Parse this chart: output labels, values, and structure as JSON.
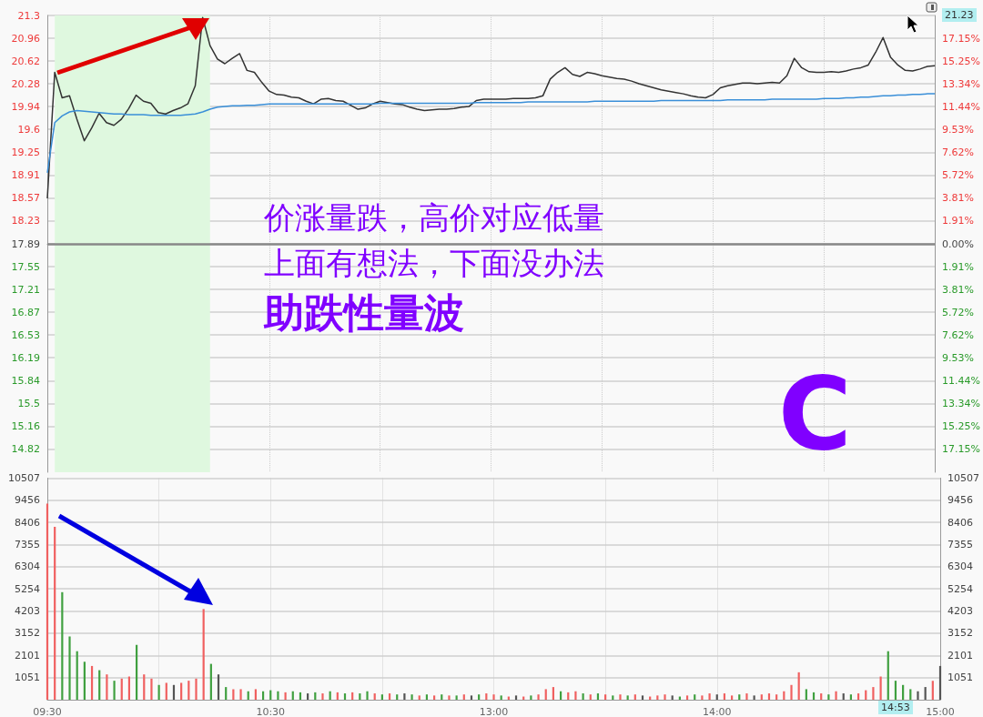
{
  "chart_data": [
    {
      "type": "line",
      "categories": [
        null,
        null,
        null,
        null,
        null,
        null,
        null,
        null,
        null,
        null,
        null,
        null,
        null,
        null,
        null,
        null,
        null,
        null,
        null,
        null,
        null,
        null,
        null,
        null,
        null,
        null,
        null,
        null,
        null,
        null,
        null,
        null,
        null,
        null,
        null,
        null,
        null,
        null,
        null,
        null,
        null,
        null,
        null,
        null,
        null,
        null,
        null,
        null,
        null,
        null,
        null,
        null,
        null,
        null,
        null,
        null,
        null,
        null,
        null,
        null,
        null,
        null,
        null,
        null,
        null,
        null,
        null,
        null,
        null,
        null,
        null,
        null,
        null,
        null,
        null,
        null,
        null,
        null,
        null,
        null,
        null,
        null,
        null,
        null,
        null,
        null,
        null,
        null,
        null,
        null,
        null,
        null,
        null,
        null,
        null,
        null,
        null,
        null,
        null,
        null,
        null,
        null,
        null,
        null,
        null,
        null,
        null,
        null,
        null,
        null,
        null,
        null,
        null,
        null,
        null,
        null,
        null,
        null,
        null,
        null,
        null
      ],
      "ylim": [
        14.48,
        21.3
      ],
      "yticks": [
        14.82,
        15.16,
        15.5,
        15.84,
        16.19,
        16.53,
        16.87,
        17.21,
        17.55,
        17.89,
        18.23,
        18.57,
        18.91,
        19.25,
        19.6,
        19.94,
        20.28,
        20.62,
        20.96,
        21.3
      ],
      "y3lim": [
        19.06,
        -19.06
      ],
      "y3ticks": [
        {
          "value": 17.15,
          "label": "17.15%"
        },
        {
          "value": 15.25,
          "label": "15.25%"
        },
        {
          "value": 13.34,
          "label": "13.34%"
        },
        {
          "value": 11.44,
          "label": "11.44%"
        },
        {
          "value": 9.53,
          "label": "9.53%"
        },
        {
          "value": 7.62,
          "label": "7.62%"
        },
        {
          "value": 5.72,
          "label": "5.72%"
        },
        {
          "value": 3.81,
          "label": "3.81%"
        },
        {
          "value": 1.91,
          "label": "1.91%"
        }
      ],
      "y2lim": [
        -19.06,
        19.06
      ],
      "y2ticks": [
        {
          "value": 0,
          "label": "0.00%"
        },
        {
          "value": 1.91,
          "label": "1.91%"
        },
        {
          "value": 3.81,
          "label": "3.81%"
        },
        {
          "value": 5.72,
          "label": "5.72%"
        },
        {
          "value": 7.62,
          "label": "7.62%"
        },
        {
          "value": 9.53,
          "label": "9.53%"
        },
        {
          "value": 11.44,
          "label": "11.44%"
        },
        {
          "value": 13.34,
          "label": "13.34%"
        },
        {
          "value": 15.25,
          "label": "15.25%"
        },
        {
          "value": 17.15,
          "label": "17.15%"
        }
      ],
      "tick_labels": "y",
      "grid": true,
      "line_style": "solid",
      "series": [
        {
          "color": "#333333",
          "values": [
            18.57,
            20.45,
            20.07,
            20.1,
            19.75,
            19.43,
            19.62,
            19.84,
            19.7,
            19.66,
            19.75,
            19.91,
            20.11,
            20.02,
            19.99,
            19.85,
            19.83,
            19.88,
            19.92,
            19.98,
            20.25,
            21.27,
            20.85,
            20.65,
            20.58,
            20.66,
            20.73,
            20.48,
            20.45,
            20.3,
            20.17,
            20.12,
            20.11,
            20.08,
            20.07,
            20.02,
            19.98,
            20.05,
            20.06,
            20.03,
            20.02,
            19.96,
            19.9,
            19.92,
            19.98,
            20.02,
            20.0,
            19.98,
            19.97,
            19.93,
            19.9,
            19.88,
            19.89,
            19.9,
            19.9,
            19.91,
            19.93,
            19.94,
            20.03,
            20.05,
            20.05,
            20.05,
            20.05,
            20.06,
            20.06,
            20.06,
            20.07,
            20.1,
            20.35,
            20.45,
            20.52,
            20.42,
            20.39,
            20.45,
            20.43,
            20.4,
            20.38,
            20.36,
            20.35,
            20.32,
            20.28,
            20.25,
            20.22,
            20.19,
            20.17,
            20.15,
            20.13,
            20.1,
            20.08,
            20.07,
            20.12,
            20.22,
            20.25,
            20.27,
            20.29,
            20.29,
            20.28,
            20.29,
            20.3,
            20.29,
            20.4,
            20.66,
            20.52,
            20.46,
            20.45,
            20.45,
            20.46,
            20.45,
            20.47,
            20.5,
            20.52,
            20.56,
            20.75,
            20.97,
            20.68,
            20.56,
            20.48,
            20.47,
            20.5,
            20.54,
            20.55
          ]
        },
        {
          "color": "#3a8fd8",
          "values": [
            18.95,
            19.7,
            19.8,
            19.86,
            19.88,
            19.87,
            19.86,
            19.85,
            19.84,
            19.83,
            19.83,
            19.82,
            19.82,
            19.82,
            19.81,
            19.81,
            19.81,
            19.81,
            19.81,
            19.82,
            19.83,
            19.86,
            19.9,
            19.93,
            19.94,
            19.95,
            19.95,
            19.96,
            19.96,
            19.97,
            19.98,
            19.98,
            19.98,
            19.98,
            19.98,
            19.98,
            19.98,
            19.98,
            19.98,
            19.98,
            19.98,
            19.98,
            19.98,
            19.98,
            19.98,
            19.99,
            19.99,
            19.99,
            19.99,
            19.99,
            19.99,
            19.99,
            19.99,
            19.99,
            19.99,
            19.99,
            19.99,
            19.99,
            20.0,
            20.0,
            20.0,
            20.0,
            20.0,
            20.0,
            20.0,
            20.01,
            20.01,
            20.01,
            20.01,
            20.01,
            20.01,
            20.01,
            20.01,
            20.01,
            20.02,
            20.02,
            20.02,
            20.02,
            20.02,
            20.02,
            20.02,
            20.02,
            20.02,
            20.03,
            20.03,
            20.03,
            20.03,
            20.03,
            20.03,
            20.03,
            20.03,
            20.03,
            20.04,
            20.04,
            20.04,
            20.04,
            20.04,
            20.04,
            20.05,
            20.05,
            20.05,
            20.05,
            20.05,
            20.05,
            20.05,
            20.06,
            20.06,
            20.06,
            20.07,
            20.07,
            20.08,
            20.08,
            20.09,
            20.1,
            20.1,
            20.11,
            20.11,
            20.12,
            20.12,
            20.13,
            20.13
          ]
        }
      ],
      "ref_lines": [
        {
          "axis": "y",
          "value": 17.89,
          "color": "#888888"
        }
      ],
      "annotations": [
        "价涨量跌，高价对应低量",
        "上面有想法，下面没办法",
        "助跌性量波",
        "C",
        "21.23"
      ]
    },
    {
      "type": "bar",
      "categories": [
        "09:30",
        null,
        null,
        null,
        null,
        null,
        null,
        null,
        null,
        null,
        null,
        null,
        null,
        null,
        null,
        null,
        null,
        null,
        null,
        null,
        null,
        null,
        null,
        null,
        null,
        null,
        null,
        null,
        null,
        null,
        "10:30",
        null,
        null,
        null,
        null,
        null,
        null,
        null,
        null,
        null,
        null,
        null,
        null,
        null,
        null,
        null,
        null,
        null,
        null,
        null,
        null,
        null,
        null,
        null,
        null,
        null,
        null,
        null,
        null,
        null,
        "13:00",
        null,
        null,
        null,
        null,
        null,
        null,
        null,
        null,
        null,
        null,
        null,
        null,
        null,
        null,
        null,
        null,
        null,
        null,
        null,
        null,
        null,
        null,
        null,
        null,
        null,
        null,
        null,
        null,
        null,
        "14:00",
        null,
        null,
        null,
        null,
        null,
        null,
        null,
        null,
        null,
        null,
        null,
        null,
        null,
        null,
        null,
        null,
        null,
        null,
        null,
        null,
        null,
        null,
        null,
        null,
        null,
        null,
        null,
        null,
        null,
        "15:00"
      ],
      "ylim": [
        0,
        10507
      ],
      "yticks": [
        1051,
        2101,
        3152,
        4203,
        5254,
        6304,
        7355,
        8406,
        9456,
        10507
      ],
      "y2lim": [
        0,
        10507
      ],
      "y2ticks": [
        1051,
        2101,
        3152,
        4203,
        5254,
        6304,
        7355,
        8406,
        9456,
        10507
      ],
      "grid": true,
      "values": [
        9300,
        8200,
        5100,
        3000,
        2300,
        1800,
        1600,
        1400,
        1200,
        900,
        1000,
        1100,
        2600,
        1200,
        1000,
        700,
        800,
        700,
        800,
        900,
        1000,
        4300,
        1700,
        1200,
        600,
        500,
        500,
        400,
        500,
        400,
        450,
        400,
        350,
        400,
        350,
        300,
        350,
        300,
        400,
        350,
        300,
        350,
        300,
        400,
        300,
        250,
        300,
        250,
        300,
        250,
        200,
        250,
        200,
        250,
        200,
        200,
        250,
        200,
        250,
        300,
        250,
        200,
        150,
        200,
        150,
        200,
        250,
        500,
        600,
        400,
        350,
        400,
        300,
        250,
        300,
        250,
        200,
        250,
        200,
        250,
        200,
        150,
        200,
        250,
        200,
        150,
        200,
        250,
        200,
        300,
        250,
        300,
        200,
        250,
        300,
        200,
        250,
        300,
        250,
        400,
        700,
        1300,
        500,
        350,
        300,
        250,
        400,
        300,
        250,
        300,
        450,
        600,
        1100,
        2300,
        900,
        700,
        500,
        400,
        600,
        900,
        1600
      ],
      "colors": [
        "#f06060",
        "#f06060",
        "#40a040",
        "#40a040",
        "#40a040",
        "#40a040",
        "#f06060",
        "#40a040",
        "#f06060",
        "#40a040",
        "#f06060",
        "#f06060",
        "#40a040",
        "#f06060",
        "#f06060",
        "#40a040",
        "#f06060",
        "#555555",
        "#f06060",
        "#f06060",
        "#f06060",
        "#f06060",
        "#40a040",
        "#555555",
        "#40a040",
        "#f06060",
        "#f06060",
        "#40a040",
        "#f06060",
        "#40a040",
        "#40a040",
        "#40a040",
        "#f06060",
        "#40a040",
        "#40a040",
        "#555555",
        "#40a040",
        "#f06060",
        "#40a040",
        "#f06060",
        "#40a040",
        "#f06060",
        "#40a040",
        "#40a040",
        "#f06060",
        "#40a040",
        "#f06060",
        "#40a040",
        "#555555",
        "#40a040",
        "#f06060",
        "#40a040",
        "#f06060",
        "#40a040",
        "#f06060",
        "#40a040",
        "#f06060",
        "#555555",
        "#40a040",
        "#f06060",
        "#f06060",
        "#40a040",
        "#f06060",
        "#555555",
        "#f06060",
        "#40a040",
        "#f06060",
        "#f06060",
        "#f06060",
        "#40a040",
        "#f06060",
        "#f06060",
        "#40a040",
        "#f06060",
        "#40a040",
        "#f06060",
        "#40a040",
        "#f06060",
        "#40a040",
        "#f06060",
        "#555555",
        "#f06060",
        "#f06060",
        "#f06060",
        "#555555",
        "#40a040",
        "#f06060",
        "#40a040",
        "#f06060",
        "#f06060",
        "#555555",
        "#f06060",
        "#f06060",
        "#40a040",
        "#f06060",
        "#555555",
        "#f06060",
        "#f06060",
        "#f06060",
        "#f06060",
        "#f06060",
        "#f06060",
        "#40a040",
        "#40a040",
        "#f06060",
        "#40a040",
        "#f06060",
        "#555555",
        "#40a040",
        "#f06060",
        "#f06060",
        "#f06060",
        "#f06060",
        "#40a040",
        "#40a040",
        "#40a040",
        "#40a040",
        "#555555",
        "#555555",
        "#f06060",
        "#555555"
      ],
      "annotations": [
        "14:53"
      ]
    }
  ]
}
